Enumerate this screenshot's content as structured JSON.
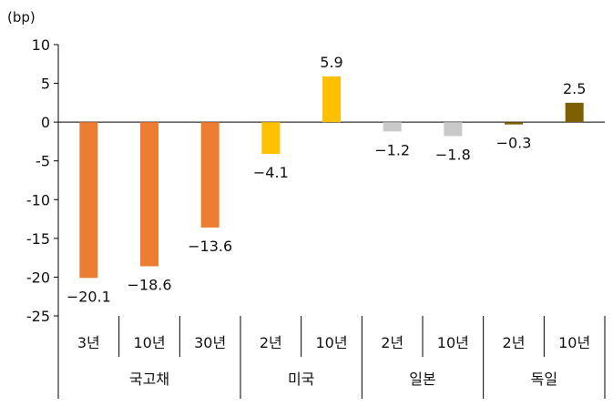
{
  "chart_data": {
    "type": "bar",
    "unit_label": "(bp)",
    "ylim": [
      -25,
      10
    ],
    "yticks": [
      10,
      5,
      0,
      -5,
      -10,
      -15,
      -20,
      -25
    ],
    "ytick_labels": [
      "10",
      "5",
      "0",
      "-5",
      "-10",
      "-15",
      "-20",
      "-25"
    ],
    "grid": false,
    "legend": "none",
    "groups": [
      {
        "name": "국고채",
        "categories": [
          "3년",
          "10년",
          "30년"
        ],
        "values": [
          -20.1,
          -18.6,
          -13.6
        ],
        "labels": [
          "-20.1",
          "-18.6",
          "-13.6"
        ],
        "color": "#ED7D31"
      },
      {
        "name": "미국",
        "categories": [
          "2년",
          "10년"
        ],
        "values": [
          -4.1,
          5.9
        ],
        "labels": [
          "-4.1",
          "5.9"
        ],
        "color": "#FFC000"
      },
      {
        "name": "일본",
        "categories": [
          "2년",
          "10년"
        ],
        "values": [
          -1.2,
          -1.8
        ],
        "labels": [
          "-1.2",
          "-1.8"
        ],
        "color": "#C9C9C9"
      },
      {
        "name": "독일",
        "categories": [
          "2년",
          "10년"
        ],
        "values": [
          -0.3,
          2.5
        ],
        "labels": [
          "-0.3",
          "2.5"
        ],
        "color": "#7F6000"
      }
    ]
  }
}
